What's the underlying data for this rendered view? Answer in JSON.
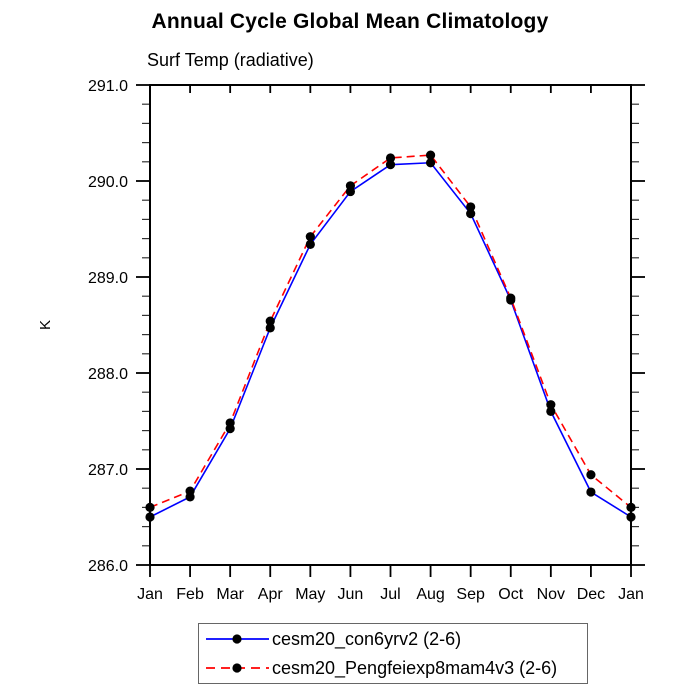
{
  "page": {
    "background": "#ffffff"
  },
  "chart_data": {
    "type": "line",
    "title": "Annual Cycle Global Mean Climatology",
    "subtitle": "Surf Temp (radiative)",
    "ylabel": "K",
    "xlabel": "",
    "categories": [
      "Jan",
      "Feb",
      "Mar",
      "Apr",
      "May",
      "Jun",
      "Jul",
      "Aug",
      "Sep",
      "Oct",
      "Nov",
      "Dec",
      "Jan"
    ],
    "ylim": [
      286.0,
      291.0
    ],
    "y_ticks": {
      "major_values": [
        286.0,
        287.0,
        288.0,
        289.0,
        290.0,
        291.0
      ],
      "major_labels": [
        "286.0",
        "287.0",
        "288.0",
        "289.0",
        "290.0",
        "291.0"
      ],
      "minor_step": 0.2
    },
    "grid": false,
    "legend_position": "bottom-center",
    "axis_color": "#000000",
    "marker_color": "#000000",
    "series": [
      {
        "name": "cesm20_con6yrv2 (2-6)",
        "color": "#0000ff",
        "line_style": "solid",
        "marker": "filled-circle",
        "values": [
          286.5,
          286.71,
          287.42,
          288.47,
          289.34,
          289.89,
          290.17,
          290.19,
          289.66,
          288.76,
          287.6,
          286.76,
          286.5
        ]
      },
      {
        "name": "cesm20_Pengfeiexp8mam4v3 (2-6)",
        "color": "#ff0000",
        "line_style": "dashed",
        "marker": "filled-circle",
        "values": [
          286.6,
          286.77,
          287.48,
          288.54,
          289.42,
          289.95,
          290.24,
          290.27,
          289.73,
          288.78,
          287.67,
          286.94,
          286.6
        ]
      }
    ]
  }
}
